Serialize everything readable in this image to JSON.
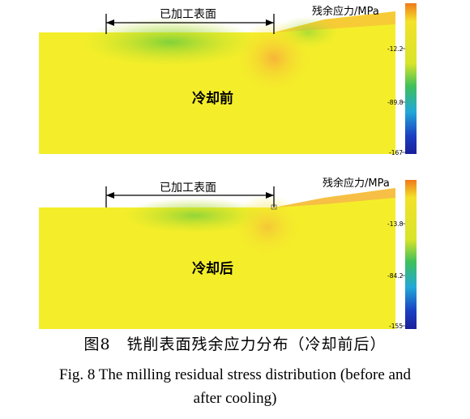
{
  "panels": [
    {
      "id": "top",
      "bracket_label": "已加工表面",
      "state_label": "冷却前",
      "legend_title": "残余应力/MPa",
      "legend_ticks": [
        "-12.2",
        "-89.8",
        "-167"
      ]
    },
    {
      "id": "bottom",
      "bracket_label": "已加工表面",
      "state_label": "冷却后",
      "legend_title": "残余应力/MPa",
      "legend_ticks": [
        "-13.8",
        "-84.2",
        "-155"
      ]
    }
  ],
  "caption": {
    "cn": "图8　铣削表面残余应力分布（冷却前后）",
    "en_line1": "Fig. 8    The milling residual stress distribution (before and",
    "en_line2": "after cooling)"
  },
  "colors": {
    "field": "#f4ee2a",
    "legend_top": "#f07a1a",
    "legend_bottom": "#1a1f9a"
  }
}
